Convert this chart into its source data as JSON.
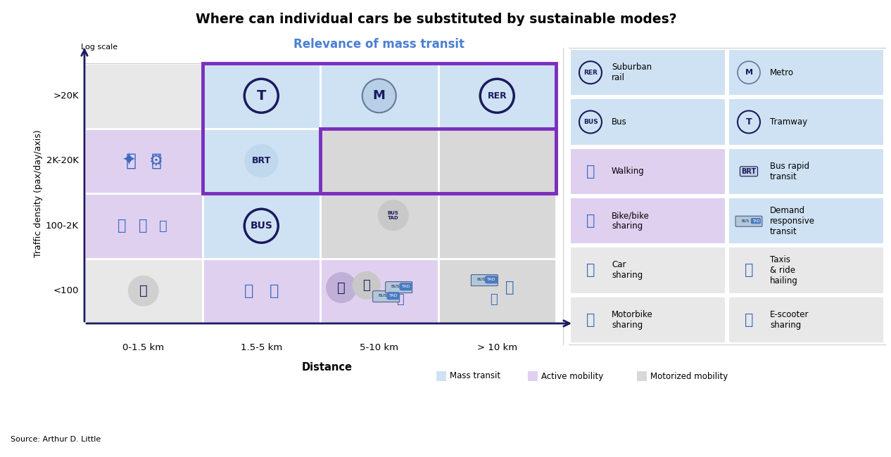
{
  "title": "Where can individual cars be substituted by sustainable modes?",
  "background_color": "#ffffff",
  "blue_light": "#cfe2f3",
  "purple_light": "#e0d0f0",
  "gray_light": "#d8d8d8",
  "purple_border": "#7b2fbe",
  "navy": "#1a1a5e",
  "blue_icon": "#3a6abf",
  "gray_cell": "#e8e8e8",
  "y_labels": [
    ">20K",
    "2K-20K",
    "100-2K",
    "<100"
  ],
  "x_labels": [
    "0-1.5 km",
    "1.5-5 km",
    "5-10 km",
    "> 10 km"
  ],
  "ylabel": "Traffic density (pax/day/axis)",
  "xlabel": "Distance",
  "source": "Source: Arthur D. Little"
}
